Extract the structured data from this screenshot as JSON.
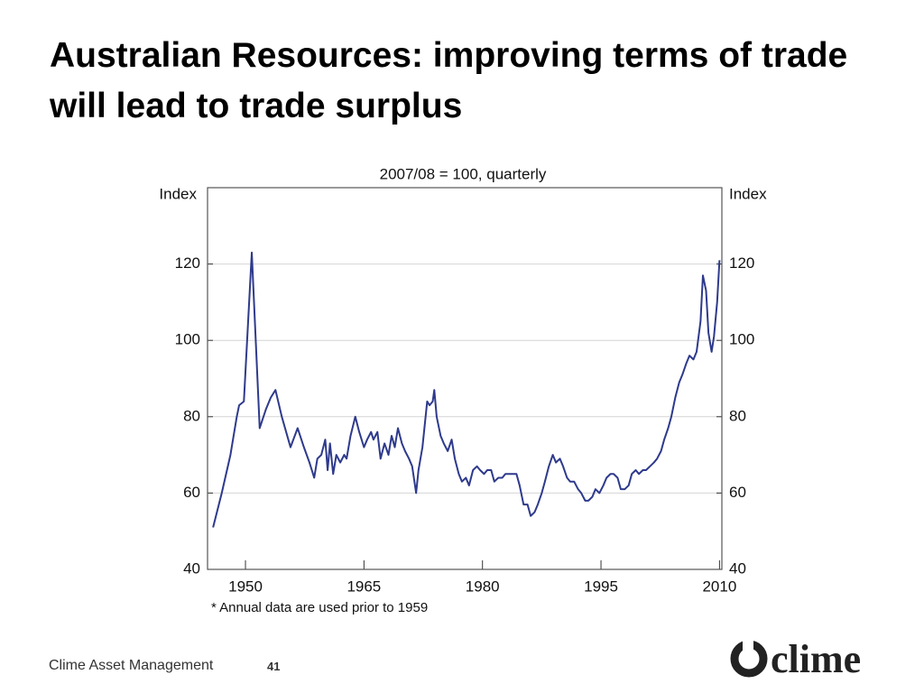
{
  "slide_title": "Australian Resources: improving terms of trade will lead to trade surplus",
  "chart_data": {
    "type": "line",
    "subtitle": "2007/08 = 100, quarterly",
    "ylabel": "Index",
    "y2label": "Index",
    "note": "*     Annual data are used prior to 1959",
    "color": "#2e3a8c",
    "grid": true,
    "xlim": [
      1945.2,
      2010.3
    ],
    "xticks": [
      1950,
      1965,
      1980,
      1995,
      2010
    ],
    "ylim": [
      40,
      140
    ],
    "yticks": [
      40,
      60,
      80,
      100,
      120
    ],
    "y2lim": [
      40,
      140
    ],
    "y2ticks": [
      40,
      60,
      80,
      100,
      120
    ],
    "x": [
      1945.9,
      1947.0,
      1948.1,
      1948.9,
      1949.2,
      1949.8,
      1950.8,
      1951.8,
      1952.6,
      1953.2,
      1953.8,
      1954.6,
      1955.7,
      1956.6,
      1957.4,
      1958.1,
      1958.7,
      1959.1,
      1959.6,
      1960.1,
      1960.4,
      1960.7,
      1961.1,
      1961.5,
      1962.0,
      1962.5,
      1962.8,
      1963.3,
      1963.9,
      1964.4,
      1965.0,
      1965.4,
      1965.9,
      1966.2,
      1966.7,
      1967.1,
      1967.6,
      1968.1,
      1968.5,
      1968.9,
      1969.3,
      1969.8,
      1970.2,
      1970.7,
      1971.1,
      1971.6,
      1971.9,
      1972.4,
      1973.0,
      1973.3,
      1973.7,
      1973.9,
      1974.2,
      1974.7,
      1975.1,
      1975.6,
      1976.1,
      1976.5,
      1977.0,
      1977.4,
      1977.9,
      1978.3,
      1978.8,
      1979.3,
      1979.7,
      1980.2,
      1980.6,
      1981.1,
      1981.5,
      1982.0,
      1982.5,
      1982.9,
      1983.4,
      1983.8,
      1984.3,
      1984.7,
      1985.2,
      1985.7,
      1986.1,
      1986.6,
      1987.0,
      1987.5,
      1987.9,
      1988.4,
      1988.9,
      1989.3,
      1989.8,
      1990.2,
      1990.7,
      1991.1,
      1991.6,
      1992.1,
      1992.5,
      1993.0,
      1993.4,
      1993.9,
      1994.3,
      1994.8,
      1995.3,
      1995.7,
      1996.2,
      1996.6,
      1997.1,
      1997.5,
      1998.0,
      1998.5,
      1998.9,
      1999.4,
      1999.8,
      2000.3,
      2000.7,
      2001.2,
      2001.7,
      2002.1,
      2002.6,
      2003.0,
      2003.5,
      2003.9,
      2004.4,
      2004.9,
      2005.3,
      2005.8,
      2006.2,
      2006.7,
      2007.1,
      2007.6,
      2007.9,
      2008.3,
      2008.6,
      2009.0,
      2009.3,
      2009.7,
      2010.0
    ],
    "values": [
      51,
      60,
      70,
      80,
      83,
      84,
      123,
      77,
      82,
      85,
      87,
      80,
      72,
      77,
      72,
      68,
      64,
      69,
      70,
      74,
      66,
      73,
      65,
      70,
      68,
      70,
      69,
      75,
      80,
      76,
      72,
      74,
      76,
      74,
      76,
      69,
      73,
      70,
      75,
      72,
      77,
      73,
      71,
      69,
      67,
      60,
      66,
      72,
      84,
      83,
      84,
      87,
      80,
      75,
      73,
      71,
      74,
      69,
      65,
      63,
      64,
      62,
      66,
      67,
      66,
      65,
      66,
      66,
      63,
      64,
      64,
      65,
      65,
      65,
      65,
      62,
      57,
      57,
      54,
      55,
      57,
      60,
      63,
      67,
      70,
      68,
      69,
      67,
      64,
      63,
      63,
      61,
      60,
      58,
      58,
      59,
      61,
      60,
      62,
      64,
      65,
      65,
      64,
      61,
      61,
      62,
      65,
      66,
      65,
      66,
      66,
      67,
      68,
      69,
      71,
      74,
      77,
      80,
      85,
      89,
      91,
      94,
      96,
      95,
      97,
      105,
      117,
      113,
      102,
      97,
      101,
      110,
      121
    ]
  },
  "footer": {
    "company": "Clime Asset Management",
    "page": "41"
  },
  "logo": "clime"
}
